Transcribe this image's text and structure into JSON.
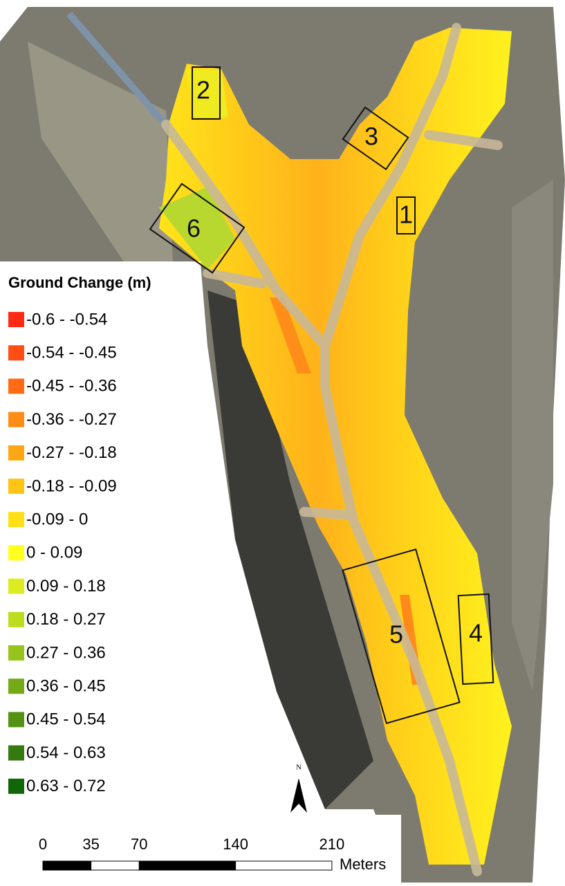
{
  "legend": {
    "title": "Ground Change (m)",
    "items": [
      {
        "label": "-0.6 - -0.54",
        "color": "#ff2a14"
      },
      {
        "label": "-0.54 - -0.45",
        "color": "#ff4d14"
      },
      {
        "label": "-0.45 - -0.36",
        "color": "#ff6a14"
      },
      {
        "label": "-0.36 - -0.27",
        "color": "#ff8c14"
      },
      {
        "label": "-0.27 - -0.18",
        "color": "#ffa614"
      },
      {
        "label": "-0.18 - -0.09",
        "color": "#ffc414"
      },
      {
        "label": "-0.09 - 0",
        "color": "#ffe014"
      },
      {
        "label": "0 - 0.09",
        "color": "#ffff1e"
      },
      {
        "label": "0.09 - 0.18",
        "color": "#dcec1e"
      },
      {
        "label": "0.18 - 0.27",
        "color": "#bcdc1e"
      },
      {
        "label": "0.27 - 0.36",
        "color": "#96c41a"
      },
      {
        "label": "0.36 - 0.45",
        "color": "#74aa18"
      },
      {
        "label": "0.45 - 0.54",
        "color": "#549214"
      },
      {
        "label": "0.54 - 0.63",
        "color": "#347a10"
      },
      {
        "label": "0.63 - 0.72",
        "color": "#106608"
      }
    ]
  },
  "zones": [
    {
      "label": "1"
    },
    {
      "label": "2"
    },
    {
      "label": "3"
    },
    {
      "label": "4"
    },
    {
      "label": "5"
    },
    {
      "label": "6"
    }
  ],
  "north_arrow": {
    "label": "N"
  },
  "scale_bar": {
    "ticks": [
      0,
      35,
      70,
      140,
      210
    ],
    "unit": "Meters"
  }
}
